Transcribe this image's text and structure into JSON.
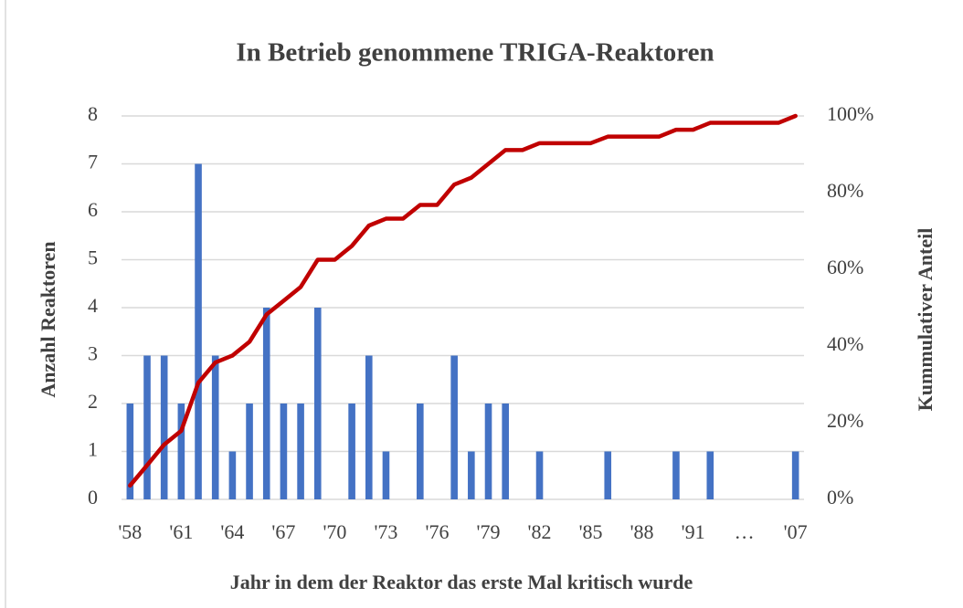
{
  "chart_data": {
    "type": "bar",
    "title": "In Betrieb genommene TRIGA-Reaktoren",
    "x_label": "Jahr in dem der Reaktor das erste Mal kritisch wurde",
    "y_label": "Anzahl Reaktoren",
    "y2_label": "Kummulativer Anteil",
    "categories": [
      "'58",
      null,
      null,
      "'61",
      null,
      null,
      "'64",
      null,
      null,
      "'67",
      null,
      null,
      "'70",
      null,
      null,
      "'73",
      null,
      null,
      "'76",
      null,
      null,
      "'79",
      null,
      null,
      "'82",
      null,
      null,
      "'85",
      null,
      null,
      "'88",
      null,
      null,
      "'91",
      null,
      null,
      "…",
      null,
      null,
      "'07"
    ],
    "series": [
      {
        "type": "bar",
        "color": "#4472c4",
        "values": [
          2,
          3,
          3,
          2,
          7,
          3,
          1,
          2,
          4,
          2,
          2,
          4,
          0,
          2,
          3,
          1,
          0,
          2,
          0,
          3,
          1,
          2,
          2,
          0,
          1,
          0,
          0,
          0,
          1,
          0,
          0,
          0,
          1,
          0,
          1,
          0,
          0,
          0,
          0,
          1
        ]
      },
      {
        "type": "line",
        "axis": "y2",
        "color": "#c00000",
        "values": [
          3.6,
          8.9,
          14.3,
          17.9,
          30.4,
          35.7,
          37.5,
          41.1,
          48.2,
          51.8,
          55.4,
          62.5,
          62.5,
          66.1,
          71.4,
          73.2,
          73.2,
          76.8,
          76.8,
          82.1,
          83.9,
          87.5,
          91.1,
          91.1,
          92.9,
          92.9,
          92.9,
          92.9,
          94.6,
          94.6,
          94.6,
          94.6,
          96.4,
          96.4,
          98.2,
          98.2,
          98.2,
          98.2,
          98.2,
          100
        ]
      }
    ],
    "ylim": [
      0,
      8
    ],
    "yticks": [
      0,
      1,
      2,
      3,
      4,
      5,
      6,
      7,
      8
    ],
    "y2lim": [
      0,
      100
    ],
    "y2ticks": [
      {
        "value": 0,
        "label": "0%"
      },
      {
        "value": 20,
        "label": "20%"
      },
      {
        "value": 40,
        "label": "40%"
      },
      {
        "value": 60,
        "label": "60%"
      },
      {
        "value": 80,
        "label": "80%"
      },
      {
        "value": 100,
        "label": "100%"
      }
    ],
    "grid": true
  }
}
